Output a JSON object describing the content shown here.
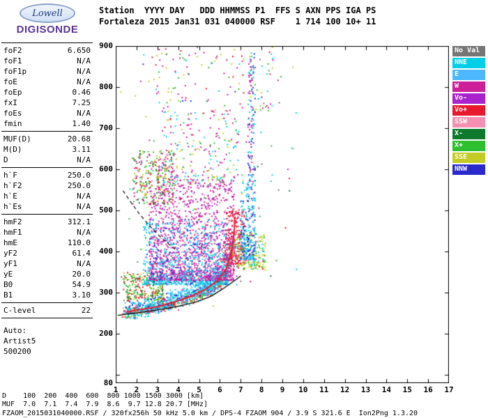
{
  "logo": {
    "name": "Lowell",
    "product": "DIGISONDE",
    "accent": "#5a3596"
  },
  "header": {
    "line1": "Station  YYYY DAY   DDD HHMMSS P1  FFS S AXN PPS IGA PS",
    "line2": "Fortaleza 2015 Jan31 031 040000 RSF    1 714 100 10+ 11",
    "fields": [
      {
        "label": "Station",
        "value": "Fortaleza"
      },
      {
        "label": "YYYY",
        "value": "2015"
      },
      {
        "label": "DAY",
        "value": "Jan31"
      },
      {
        "label": "DDD",
        "value": "031"
      },
      {
        "label": "HHMMSS",
        "value": "040000"
      },
      {
        "label": "P1",
        "value": "RSF"
      },
      {
        "label": "S",
        "value": "1"
      },
      {
        "label": "AXN",
        "value": "714"
      },
      {
        "label": "PPS",
        "value": "100"
      },
      {
        "label": "IGA",
        "value": "10+"
      },
      {
        "label": "PS",
        "value": "11"
      }
    ]
  },
  "params": {
    "groups": [
      {
        "rows": [
          [
            "foF2",
            "6.650"
          ],
          [
            "foF1",
            "N/A"
          ],
          [
            "foF1p",
            "N/A"
          ],
          [
            "foE",
            "N/A"
          ],
          [
            "foEp",
            "0.46"
          ],
          [
            "fxI",
            "7.25"
          ],
          [
            "foEs",
            "N/A"
          ],
          [
            "fmin",
            "1.40"
          ]
        ]
      },
      {
        "rows": [
          [
            "MUF(D)",
            "20.68"
          ],
          [
            "M(D)",
            "3.11"
          ],
          [
            "D",
            "N/A"
          ]
        ]
      },
      {
        "rows": [
          [
            "h`F",
            "250.0"
          ],
          [
            "h`F2",
            "250.0"
          ],
          [
            "h`E",
            "N/A"
          ],
          [
            "h`Es",
            "N/A"
          ]
        ]
      },
      {
        "rows": [
          [
            "hmF2",
            "312.1"
          ],
          [
            "hmF1",
            "N/A"
          ],
          [
            "hmE",
            "110.0"
          ],
          [
            "yF2",
            "61.4"
          ],
          [
            "yF1",
            "N/A"
          ],
          [
            "yE",
            "20.0"
          ],
          [
            "B0",
            "54.9"
          ],
          [
            "B1",
            "3.10"
          ]
        ]
      },
      {
        "rows": [
          [
            "C-level",
            "22"
          ]
        ]
      }
    ],
    "auto_lines": [
      "Auto:",
      "Artist5",
      "500200"
    ]
  },
  "legend": [
    {
      "label": "No Val",
      "color": "#757575"
    },
    {
      "label": "NNE",
      "color": "#00cfe8"
    },
    {
      "label": "E",
      "color": "#4db8ff"
    },
    {
      "label": "W",
      "color": "#cc1f99"
    },
    {
      "label": "Vo-",
      "color": "#aa22cc"
    },
    {
      "label": "Vo+",
      "color": "#e8192c"
    },
    {
      "label": "SSW",
      "color": "#f590b2"
    },
    {
      "label": "X-",
      "color": "#0e7a2e"
    },
    {
      "label": "X+",
      "color": "#2ebf2e"
    },
    {
      "label": "SSE",
      "color": "#c3cc24"
    },
    {
      "label": "NNW",
      "color": "#2929cc"
    }
  ],
  "chart_data": {
    "type": "scatter",
    "title": "Fortaleza ionogram 2015 Jan31 031 040000",
    "xlim": [
      1,
      17
    ],
    "ylim": [
      80,
      900
    ],
    "x_ticks": [
      1,
      2,
      3,
      4,
      5,
      6,
      7,
      8,
      9,
      10,
      11,
      12,
      13,
      14,
      15,
      16,
      17
    ],
    "y_tick_marks": [
      100,
      200,
      300,
      400,
      500,
      600,
      700,
      800,
      900
    ],
    "y_ticks": [
      {
        "v": 900,
        "label": "900"
      },
      {
        "v": 800,
        "label": "800"
      },
      {
        "v": 700,
        "label": "700"
      },
      {
        "v": 600,
        "label": "600"
      },
      {
        "v": 500,
        "label": "500"
      },
      {
        "v": 400,
        "label": "400"
      },
      {
        "v": 300,
        "label": "300"
      },
      {
        "v": 200,
        "label": "200"
      },
      {
        "v": 80,
        "label": "80"
      }
    ],
    "palette": {
      "no_val": "#757575",
      "NNE": "#00cfe8",
      "E": "#4db8ff",
      "W": "#cc1f99",
      "Vo-": "#aa22cc",
      "Vo+": "#e8192c",
      "SSW": "#f590b2",
      "X-": "#0e7a2e",
      "X+": "#2ebf2e",
      "SSE": "#c3cc24",
      "NNW": "#2929cc"
    },
    "key_values": {
      "foF2_MHz": 6.65,
      "fxI_MHz": 7.25,
      "fmin_MHz": 1.4,
      "hmF2_km": 312.1,
      "h_F_km": 250.0
    },
    "clusters": [
      {
        "name": "f-trace-band",
        "type": "trace",
        "pts": [
          [
            1.4,
            250
          ],
          [
            2,
            256
          ],
          [
            3,
            264
          ],
          [
            4,
            276
          ],
          [
            5,
            292
          ],
          [
            5.5,
            304
          ],
          [
            6,
            324
          ],
          [
            6.3,
            348
          ],
          [
            6.5,
            380
          ],
          [
            6.65,
            425
          ]
        ],
        "jx": 0.15,
        "jy": 16,
        "count": 600,
        "colors": {
          "Vo+": 0.32,
          "X+": 0.2,
          "NNE": 0.18,
          "SSE": 0.15,
          "W": 0.15
        }
      },
      {
        "name": "cyan-band",
        "type": "trace",
        "pts": [
          [
            1.5,
            255
          ],
          [
            2.5,
            266
          ],
          [
            3.5,
            280
          ],
          [
            4.5,
            296
          ],
          [
            5.5,
            318
          ],
          [
            6.1,
            345
          ]
        ],
        "jx": 0.25,
        "jy": 28,
        "count": 600,
        "colors": {
          "NNE": 0.55,
          "E": 0.28,
          "NNW": 0.17
        }
      },
      {
        "name": "left-green-band",
        "type": "box",
        "x": [
          1.35,
          3.3
        ],
        "y": [
          280,
          350
        ],
        "bias": 1.3,
        "count": 240,
        "colors": {
          "X+": 0.38,
          "Vo+": 0.24,
          "SSE": 0.2,
          "X-": 0.18
        }
      },
      {
        "name": "spreadF-magenta",
        "type": "box",
        "x": [
          2.6,
          6.7
        ],
        "y": [
          330,
          575
        ],
        "bias": 2.1,
        "count": 1500,
        "colors": {
          "W": 0.6,
          "Vo-": 0.28,
          "SSW": 0.12
        }
      },
      {
        "name": "spreadF-cyan",
        "type": "box",
        "x": [
          2.3,
          6.4
        ],
        "y": [
          320,
          480
        ],
        "bias": 1.9,
        "count": 650,
        "colors": {
          "NNE": 0.58,
          "E": 0.25,
          "NNW": 0.17
        }
      },
      {
        "name": "cusp-red",
        "type": "box",
        "x": [
          6.2,
          7.2
        ],
        "y": [
          370,
          505
        ],
        "bias": 1.3,
        "count": 250,
        "colors": {
          "Vo+": 0.68,
          "W": 0.2,
          "SSW": 0.12
        }
      },
      {
        "name": "cusp-right-yellow",
        "type": "box",
        "x": [
          6.8,
          8.2
        ],
        "y": [
          355,
          445
        ],
        "bias": 1.2,
        "count": 210,
        "colors": {
          "SSE": 0.5,
          "X+": 0.18,
          "NNE": 0.2,
          "Vo+": 0.12
        }
      },
      {
        "name": "xmode-column",
        "type": "box",
        "x": [
          7.0,
          7.7
        ],
        "y": [
          380,
          570
        ],
        "bias": 1.5,
        "count": 240,
        "colors": {
          "NNE": 0.45,
          "NNW": 0.28,
          "E": 0.27
        }
      },
      {
        "name": "tall-streak",
        "type": "box",
        "x": [
          7.35,
          7.7
        ],
        "y": [
          570,
          885
        ],
        "bias": 1.0,
        "count": 120,
        "colors": {
          "NNE": 0.38,
          "W": 0.32,
          "NNW": 0.3
        }
      },
      {
        "name": "second-hop",
        "type": "box",
        "x": [
          1.8,
          3.8
        ],
        "y": [
          515,
          645
        ],
        "bias": 1.15,
        "count": 270,
        "colors": {
          "W": 0.3,
          "X+": 0.2,
          "SSE": 0.2,
          "Vo+": 0.15,
          "X-": 0.15
        }
      },
      {
        "name": "mid-upper-sparse",
        "type": "box",
        "x": [
          3.2,
          6.9
        ],
        "y": [
          560,
          745
        ],
        "bias": 1.35,
        "count": 240,
        "colors": {
          "W": 0.45,
          "SSE": 0.2,
          "X+": 0.13,
          "NNE": 0.22
        }
      },
      {
        "name": "top-sparse",
        "type": "box",
        "x": [
          2.2,
          8.6
        ],
        "y": [
          745,
          895
        ],
        "bias": 1.0,
        "count": 110,
        "colors": {
          "W": 0.3,
          "SSE": 0.2,
          "X+": 0.15,
          "NNE": 0.15,
          "Vo+": 0.1,
          "NNW": 0.1
        }
      },
      {
        "name": "noise",
        "type": "box",
        "x": [
          1.1,
          9.7
        ],
        "y": [
          250,
          900
        ],
        "bias": 1.0,
        "count": 110,
        "colors": {
          "no_val": 0.2,
          "W": 0.2,
          "NNE": 0.2,
          "X+": 0.12,
          "SSE": 0.12,
          "Vo+": 0.08,
          "X-": 0.08
        }
      }
    ],
    "lines": {
      "profile_solid": [
        [
          1.1,
          245
        ],
        [
          2.0,
          251
        ],
        [
          3.0,
          258
        ],
        [
          4.0,
          267
        ],
        [
          4.9,
          278
        ],
        [
          5.6,
          292
        ],
        [
          6.1,
          308
        ],
        [
          6.5,
          322
        ],
        [
          6.8,
          333
        ],
        [
          7.0,
          341
        ]
      ],
      "profile_dashed": [
        [
          1.35,
          548
        ],
        [
          1.7,
          522
        ],
        [
          2.1,
          494
        ],
        [
          2.6,
          464
        ],
        [
          3.1,
          438
        ],
        [
          3.6,
          416
        ],
        [
          3.95,
          402
        ]
      ],
      "trace_red": [
        [
          1.5,
          253
        ],
        [
          2.2,
          259
        ],
        [
          3.0,
          266
        ],
        [
          3.8,
          277
        ],
        [
          4.6,
          291
        ],
        [
          5.3,
          308
        ],
        [
          5.9,
          330
        ],
        [
          6.3,
          358
        ],
        [
          6.55,
          395
        ],
        [
          6.68,
          445
        ],
        [
          6.73,
          485
        ]
      ]
    }
  },
  "dmuf": {
    "d_label": "D",
    "d_values": [
      "100",
      "200",
      "400",
      "600",
      "800",
      "1000",
      "1500",
      "3000"
    ],
    "d_unit": "[km]",
    "muf_label": "MUF",
    "muf_values": [
      "7.0",
      "7.1",
      "7.4",
      "7.9",
      "8.6",
      "9.7",
      "12.8",
      "20.7"
    ],
    "muf_unit": "[MHz]"
  },
  "footer": {
    "text": "FZAOM_2015031040000.RSF / 320fx256h 50 kHz 5.0 km / DPS-4 FZAOM 904 / 3.9 S 321.6 E  Ion2Png 1.3.20"
  }
}
